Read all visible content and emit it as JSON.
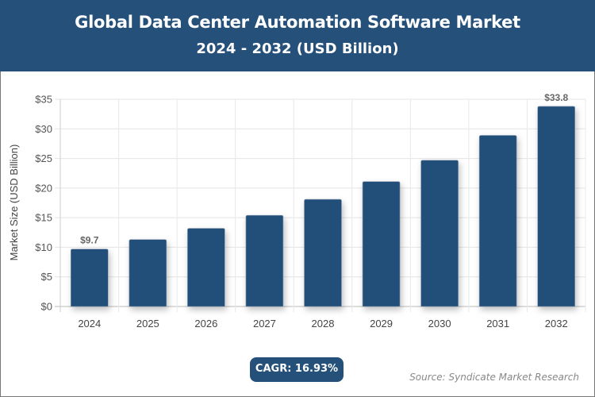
{
  "header": {
    "title": "Global Data Center Automation Software Market",
    "subtitle": "2024 - 2032 (USD Billion)"
  },
  "chart_data": {
    "type": "bar",
    "title": "Global Data Center Automation Software Market",
    "subtitle": "2024 - 2032 (USD Billion)",
    "categories": [
      "2024",
      "2025",
      "2026",
      "2027",
      "2028",
      "2029",
      "2030",
      "2031",
      "2032"
    ],
    "values": [
      9.7,
      11.3,
      13.2,
      15.4,
      18.1,
      21.1,
      24.7,
      28.9,
      33.8
    ],
    "data_labels": {
      "0": "$9.7",
      "8": "$33.8"
    },
    "xlabel": "",
    "ylabel": "Market Size (USD Billion)",
    "ylim": [
      0,
      35
    ],
    "yticks": [
      0,
      5,
      10,
      15,
      20,
      25,
      30,
      35
    ],
    "ytick_labels": [
      "$0",
      "$5",
      "$10",
      "$15",
      "$20",
      "$25",
      "$30",
      "$35"
    ],
    "grid": true,
    "bar_color": "#24507a"
  },
  "footer": {
    "cagr": "CAGR: 16.93%",
    "source": "Source: Syndicate Market Research"
  }
}
